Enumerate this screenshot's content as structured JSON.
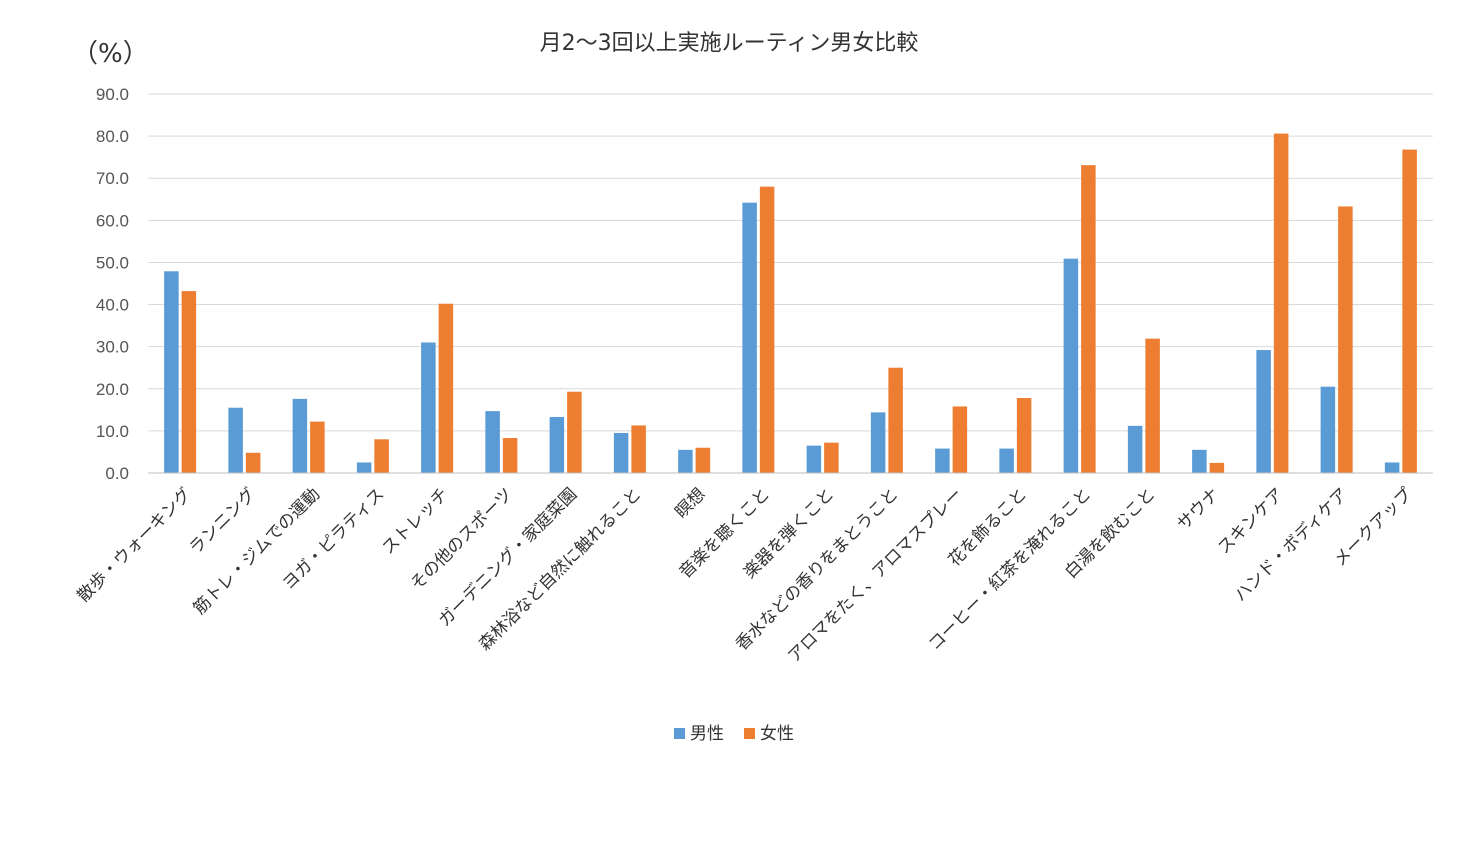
{
  "chart_data": {
    "type": "bar",
    "title": "月2〜3回以上実施ルーティン男女比較",
    "unit_label": "（%）",
    "ylim": [
      0,
      90
    ],
    "yticks": [
      "0.0",
      "10.0",
      "20.0",
      "30.0",
      "40.0",
      "50.0",
      "60.0",
      "70.0",
      "80.0",
      "90.0"
    ],
    "grid": true,
    "legend_position": "bottom",
    "categories": [
      "散歩・ウォーキング",
      "ランニング",
      "筋トレ・ジムでの運動",
      "ヨガ・ピラティス",
      "ストレッチ",
      "その他のスポーツ",
      "ガーデニング・家庭菜園",
      "森林浴など自然に触れること",
      "瞑想",
      "音楽を聴くこと",
      "楽器を弾くこと",
      "香水などの香りをまとうこと",
      "アロマをたく、アロマスプレー",
      "花を飾ること",
      "コーヒー・紅茶を淹れること",
      "白湯を飲むこと",
      "サウナ",
      "スキンケア",
      "ハンド・ボディケア",
      "メークアップ"
    ],
    "series": [
      {
        "name": "男性",
        "color": "#5b9bd5",
        "values": [
          47.9,
          15.5,
          17.6,
          2.5,
          31.0,
          14.7,
          13.3,
          9.5,
          5.5,
          64.2,
          6.5,
          14.4,
          5.8,
          5.8,
          50.9,
          11.2,
          5.5,
          29.2,
          20.5,
          2.5
        ]
      },
      {
        "name": "女性",
        "color": "#ed7d31",
        "values": [
          43.2,
          4.8,
          12.2,
          8.0,
          40.2,
          8.3,
          19.3,
          11.3,
          6.0,
          68.0,
          7.2,
          25.0,
          15.8,
          17.8,
          73.1,
          31.9,
          2.4,
          80.6,
          63.3,
          76.8
        ]
      }
    ]
  }
}
